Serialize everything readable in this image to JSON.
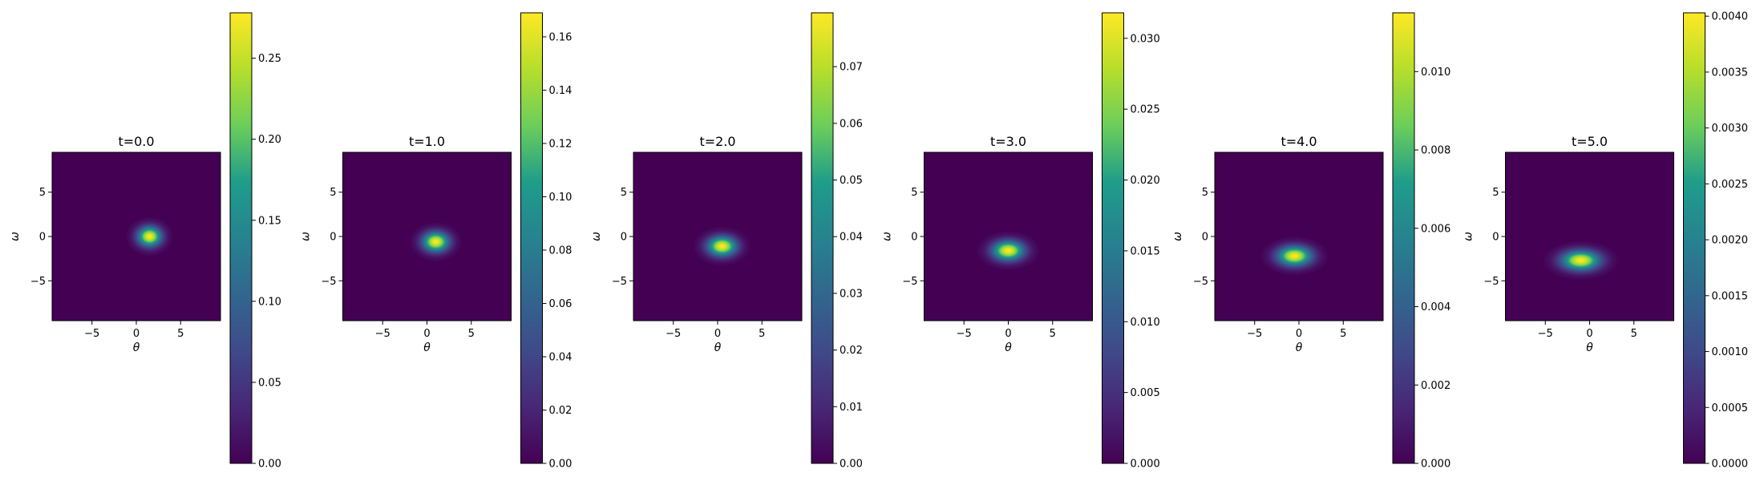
{
  "chart_data": [
    {
      "type": "heatmap",
      "title": "t=0.0",
      "xlabel": "θ",
      "ylabel": "ω",
      "xlim": [
        -9.5,
        9.5
      ],
      "ylim": [
        -9.5,
        9.5
      ],
      "x_ticks": [
        -5,
        0,
        5
      ],
      "y_ticks": [
        -5,
        0,
        5
      ],
      "peak": {
        "theta": 1.5,
        "omega": 0.0
      },
      "spread": {
        "theta": 0.9,
        "omega": 0.75
      },
      "colorbar": {
        "min": 0.0,
        "max": 0.278,
        "ticks": [
          "0.00",
          "0.05",
          "0.10",
          "0.15",
          "0.20",
          "0.25"
        ],
        "tick_values": [
          0,
          0.05,
          0.1,
          0.15,
          0.2,
          0.25
        ]
      }
    },
    {
      "type": "heatmap",
      "title": "t=1.0",
      "xlabel": "θ",
      "ylabel": "ω",
      "xlim": [
        -9.5,
        9.5
      ],
      "ylim": [
        -9.5,
        9.5
      ],
      "x_ticks": [
        -5,
        0,
        5
      ],
      "y_ticks": [
        -5,
        0,
        5
      ],
      "peak": {
        "theta": 1.0,
        "omega": -0.6
      },
      "spread": {
        "theta": 1.0,
        "omega": 0.75
      },
      "colorbar": {
        "min": 0.0,
        "max": 0.169,
        "ticks": [
          "0.00",
          "0.02",
          "0.04",
          "0.06",
          "0.08",
          "0.10",
          "0.12",
          "0.14",
          "0.16"
        ],
        "tick_values": [
          0,
          0.02,
          0.04,
          0.06,
          0.08,
          0.1,
          0.12,
          0.14,
          0.16
        ]
      }
    },
    {
      "type": "heatmap",
      "title": "t=2.0",
      "xlabel": "θ",
      "ylabel": "ω",
      "xlim": [
        -9.5,
        9.5
      ],
      "ylim": [
        -9.5,
        9.5
      ],
      "x_ticks": [
        -5,
        0,
        5
      ],
      "y_ticks": [
        -5,
        0,
        5
      ],
      "peak": {
        "theta": 0.5,
        "omega": -1.1
      },
      "spread": {
        "theta": 1.1,
        "omega": 0.75
      },
      "colorbar": {
        "min": 0.0,
        "max": 0.0795,
        "ticks": [
          "0.00",
          "0.01",
          "0.02",
          "0.03",
          "0.04",
          "0.05",
          "0.06",
          "0.07"
        ],
        "tick_values": [
          0,
          0.01,
          0.02,
          0.03,
          0.04,
          0.05,
          0.06,
          0.07
        ]
      }
    },
    {
      "type": "heatmap",
      "title": "t=3.0",
      "xlabel": "θ",
      "ylabel": "ω",
      "xlim": [
        -9.5,
        9.5
      ],
      "ylim": [
        -9.5,
        9.5
      ],
      "x_ticks": [
        -5,
        0,
        5
      ],
      "y_ticks": [
        -5,
        0,
        5
      ],
      "peak": {
        "theta": 0.0,
        "omega": -1.6
      },
      "spread": {
        "theta": 1.2,
        "omega": 0.75
      },
      "colorbar": {
        "min": 0.0,
        "max": 0.0318,
        "ticks": [
          "0.000",
          "0.005",
          "0.010",
          "0.015",
          "0.020",
          "0.025",
          "0.030"
        ],
        "tick_values": [
          0,
          0.005,
          0.01,
          0.015,
          0.02,
          0.025,
          0.03
        ]
      }
    },
    {
      "type": "heatmap",
      "title": "t=4.0",
      "xlabel": "θ",
      "ylabel": "ω",
      "xlim": [
        -9.5,
        9.5
      ],
      "ylim": [
        -9.5,
        9.5
      ],
      "x_ticks": [
        -5,
        0,
        5
      ],
      "y_ticks": [
        -5,
        0,
        5
      ],
      "peak": {
        "theta": -0.5,
        "omega": -2.2
      },
      "spread": {
        "theta": 1.3,
        "omega": 0.75
      },
      "colorbar": {
        "min": 0.0,
        "max": 0.0115,
        "ticks": [
          "0.000",
          "0.002",
          "0.004",
          "0.006",
          "0.008",
          "0.010"
        ],
        "tick_values": [
          0,
          0.002,
          0.004,
          0.006,
          0.008,
          0.01
        ]
      }
    },
    {
      "type": "heatmap",
      "title": "t=5.0",
      "xlabel": "θ",
      "ylabel": "ω",
      "xlim": [
        -9.5,
        9.5
      ],
      "ylim": [
        -9.5,
        9.5
      ],
      "x_ticks": [
        -5,
        0,
        5
      ],
      "y_ticks": [
        -5,
        0,
        5
      ],
      "peak": {
        "theta": -1.0,
        "omega": -2.7
      },
      "spread": {
        "theta": 1.45,
        "omega": 0.75
      },
      "colorbar": {
        "min": 0.0,
        "max": 0.00403,
        "ticks": [
          "0.0000",
          "0.0005",
          "0.0010",
          "0.0015",
          "0.0020",
          "0.0025",
          "0.0030",
          "0.0035",
          "0.0040"
        ],
        "tick_values": [
          0,
          0.0005,
          0.001,
          0.0015,
          0.002,
          0.0025,
          0.003,
          0.0035,
          0.004
        ]
      }
    }
  ],
  "colormap": "viridis",
  "colormap_stops": [
    "#440154",
    "#482777",
    "#3f4a8a",
    "#31678e",
    "#26838f",
    "#1f9d8a",
    "#6cce5a",
    "#b6de2b",
    "#fee825"
  ]
}
